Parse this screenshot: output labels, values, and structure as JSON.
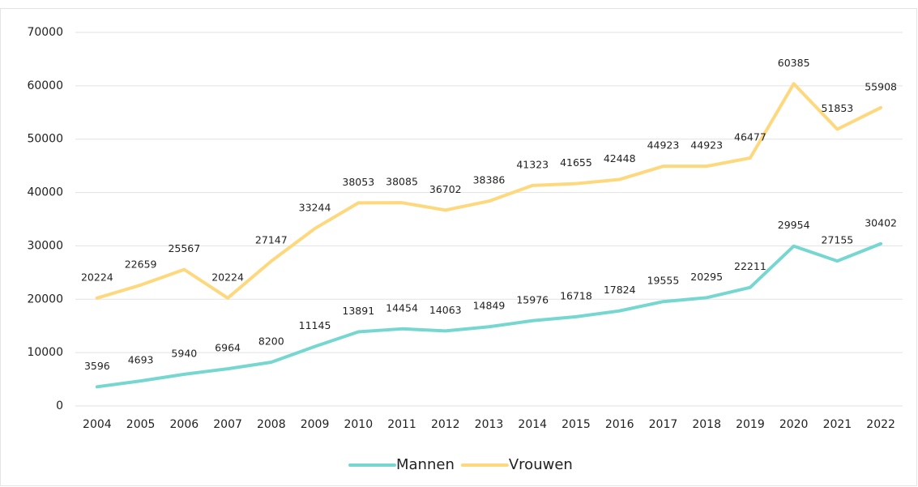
{
  "chart_data": {
    "type": "line",
    "categories": [
      "2004",
      "2005",
      "2006",
      "2007",
      "2008",
      "2009",
      "2010",
      "2011",
      "2012",
      "2013",
      "2014",
      "2015",
      "2016",
      "2017",
      "2018",
      "2019",
      "2020",
      "2021",
      "2022"
    ],
    "series": [
      {
        "name": "Mannen",
        "color": "#76d7d0",
        "values": [
          3596,
          4693,
          5940,
          6964,
          8200,
          11145,
          13891,
          14454,
          14063,
          14849,
          15976,
          16718,
          17824,
          19555,
          20295,
          22211,
          29954,
          27155,
          30402
        ]
      },
      {
        "name": "Vrouwen",
        "color": "#fdd87d",
        "values": [
          20224,
          22659,
          25567,
          20224,
          27147,
          33244,
          38053,
          38085,
          36702,
          38386,
          41323,
          41655,
          42448,
          44923,
          44923,
          46477,
          60385,
          51853,
          55908
        ]
      }
    ],
    "ylim": [
      0,
      70000
    ],
    "yticks": [
      0,
      10000,
      20000,
      30000,
      40000,
      50000,
      60000,
      70000
    ],
    "grid": true,
    "legend": "bottom"
  }
}
